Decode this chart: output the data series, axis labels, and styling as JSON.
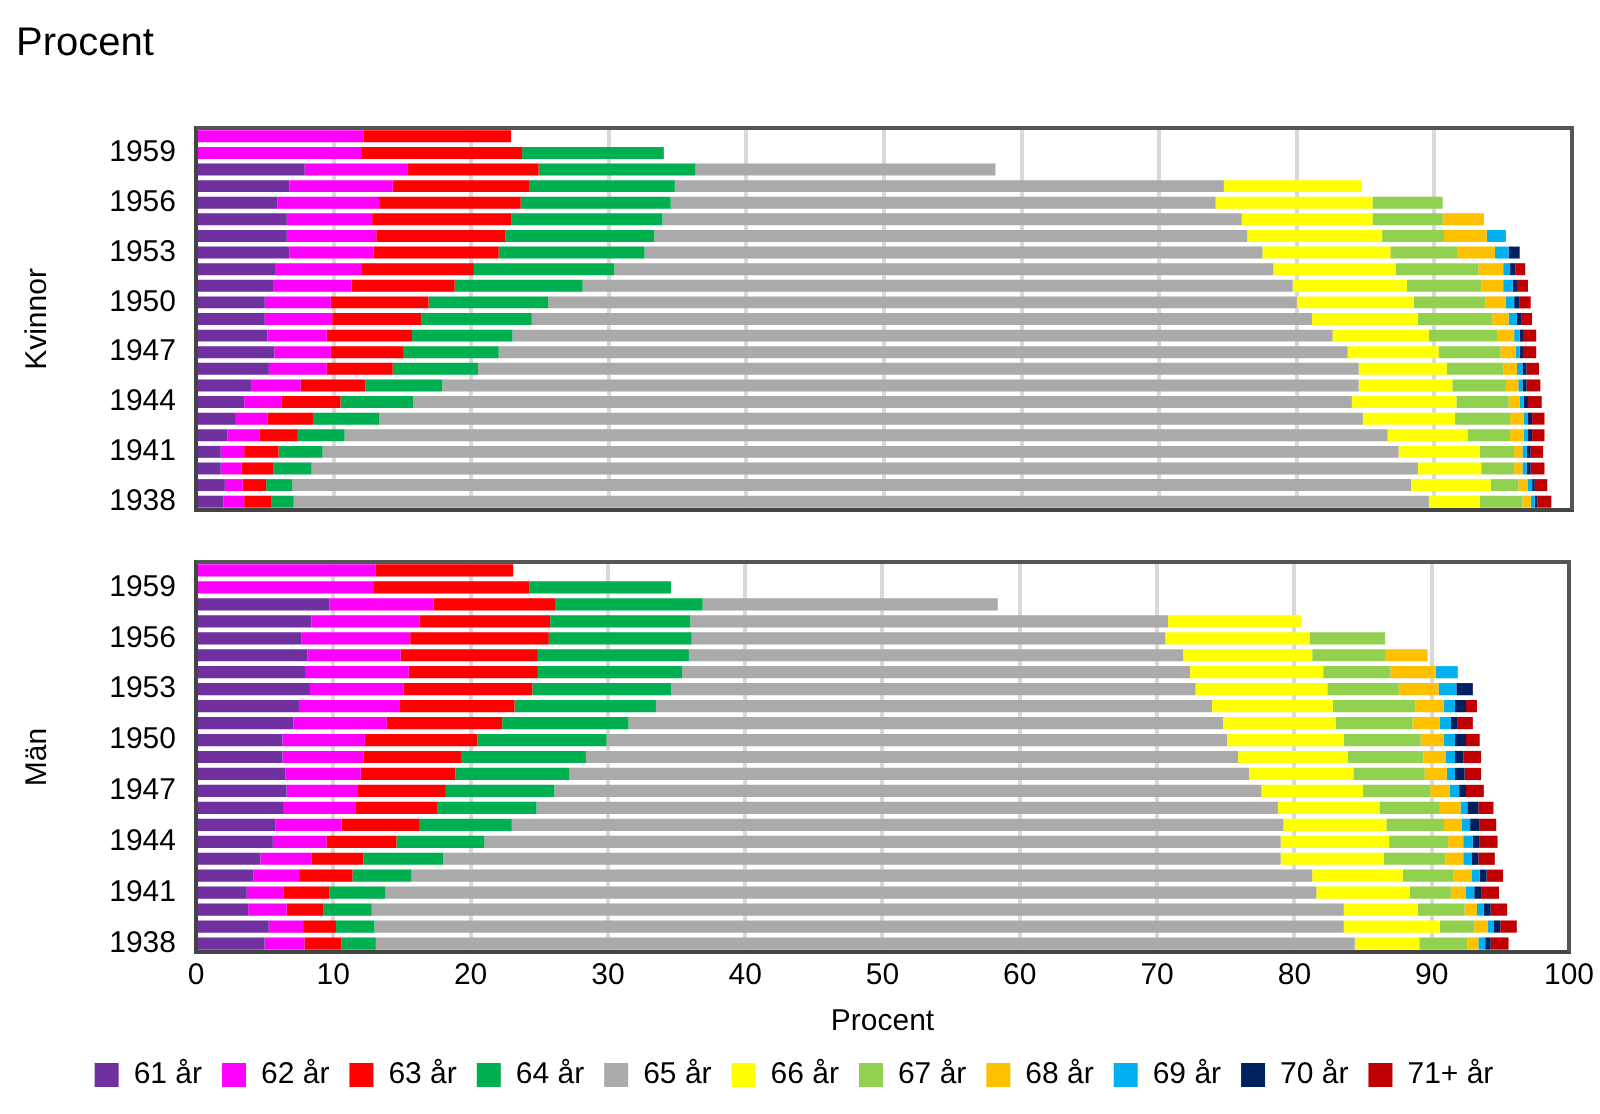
{
  "chart_data": [
    {
      "type": "bar",
      "orientation": "horizontal",
      "stacked": true,
      "title": "Procent",
      "ylabel": "Kvinnor",
      "categories": [
        null,
        "1959",
        null,
        null,
        "1956",
        null,
        null,
        "1953",
        null,
        null,
        "1950",
        null,
        null,
        "1947",
        null,
        null,
        "1944",
        null,
        null,
        "1941",
        null,
        null,
        "1938"
      ],
      "xlim": [
        0,
        100
      ],
      "xticks": [
        0,
        10,
        20,
        30,
        40,
        50,
        60,
        70,
        80,
        90,
        100
      ],
      "grid": "x",
      "legend": false,
      "tick_labels": "y",
      "series": [
        {
          "color": "#7030a0",
          "values": [
            null,
            null,
            7.9,
            6.8,
            5.9,
            6.6,
            6.6,
            6.8,
            5.8,
            5.6,
            5.0,
            5.0,
            5.2,
            5.7,
            5.3,
            4.0,
            3.5,
            2.9,
            2.3,
            1.8,
            1.8,
            2.1,
            2.0
          ]
        },
        {
          "color": "#ff00ff",
          "values": [
            12.2,
            12.0,
            7.5,
            7.5,
            7.4,
            6.2,
            6.5,
            6.1,
            6.2,
            5.7,
            4.8,
            4.9,
            4.3,
            4.1,
            4.2,
            3.6,
            2.7,
            2.3,
            2.3,
            1.7,
            1.5,
            1.3,
            1.5
          ]
        },
        {
          "color": "#ff0000",
          "values": [
            10.7,
            11.7,
            9.5,
            9.9,
            10.3,
            10.1,
            9.4,
            9.1,
            8.2,
            7.5,
            7.1,
            6.5,
            6.2,
            5.3,
            4.8,
            4.7,
            4.3,
            3.3,
            2.8,
            2.5,
            2.3,
            1.7,
            2.0
          ]
        },
        {
          "color": "#00b050",
          "values": [
            null,
            10.3,
            11.4,
            10.6,
            10.9,
            11.0,
            10.8,
            10.6,
            10.2,
            9.3,
            8.7,
            8.0,
            7.3,
            6.9,
            6.2,
            5.6,
            5.3,
            4.8,
            3.4,
            3.2,
            2.8,
            1.9,
            1.6
          ]
        },
        {
          "color": "#aaaaaa",
          "values": [
            null,
            null,
            21.8,
            39.9,
            39.6,
            42.1,
            43.1,
            44.9,
            47.9,
            51.6,
            54.4,
            56.7,
            59.6,
            61.7,
            64.0,
            66.6,
            68.2,
            71.5,
            75.8,
            78.2,
            80.4,
            81.3,
            82.5
          ]
        },
        {
          "color": "#ffff00",
          "values": [
            null,
            null,
            null,
            10.0,
            11.4,
            9.5,
            9.8,
            9.3,
            8.9,
            8.3,
            8.5,
            7.7,
            7.0,
            6.6,
            6.4,
            6.8,
            7.6,
            6.7,
            5.8,
            5.9,
            4.6,
            5.8,
            3.7
          ]
        },
        {
          "color": "#92d050",
          "values": [
            null,
            null,
            null,
            null,
            5.1,
            5.1,
            4.5,
            4.9,
            6.0,
            5.4,
            5.2,
            5.4,
            5.0,
            4.5,
            4.1,
            3.9,
            3.8,
            4.0,
            3.1,
            2.5,
            2.4,
            2.0,
            3.1
          ]
        },
        {
          "color": "#ffc000",
          "values": [
            null,
            null,
            null,
            null,
            null,
            3.0,
            3.1,
            2.7,
            1.8,
            1.6,
            1.5,
            1.2,
            1.2,
            1.1,
            1.0,
            0.9,
            0.8,
            1.0,
            1.0,
            0.6,
            0.6,
            0.7,
            0.6
          ]
        },
        {
          "color": "#00b0f0",
          "values": [
            null,
            null,
            null,
            null,
            null,
            null,
            1.4,
            1.0,
            0.5,
            0.7,
            0.6,
            0.6,
            0.4,
            0.3,
            0.4,
            0.3,
            0.3,
            0.3,
            0.3,
            0.3,
            0.3,
            0.3,
            0.3
          ]
        },
        {
          "color": "#002060",
          "values": [
            null,
            null,
            null,
            null,
            null,
            null,
            null,
            0.8,
            0.4,
            0.3,
            0.4,
            0.3,
            0.3,
            0.3,
            0.3,
            0.3,
            0.3,
            0.3,
            0.3,
            0.3,
            0.3,
            0.2,
            0.2
          ]
        },
        {
          "color": "#c00000",
          "values": [
            null,
            null,
            null,
            null,
            null,
            null,
            null,
            null,
            0.7,
            0.8,
            0.8,
            0.8,
            0.9,
            0.9,
            0.9,
            1.0,
            1.0,
            0.9,
            0.9,
            0.9,
            1.0,
            0.9,
            1.0
          ]
        }
      ]
    },
    {
      "type": "bar",
      "orientation": "horizontal",
      "stacked": true,
      "ylabel": "Män",
      "xlabel": "Procent",
      "categories": [
        null,
        "1959",
        null,
        null,
        "1956",
        null,
        null,
        "1953",
        null,
        null,
        "1950",
        null,
        null,
        "1947",
        null,
        null,
        "1944",
        null,
        null,
        "1941",
        null,
        null,
        "1938"
      ],
      "xlim": [
        0,
        100
      ],
      "xticks": [
        0,
        10,
        20,
        30,
        40,
        50,
        60,
        70,
        80,
        90,
        100
      ],
      "grid": "x",
      "legend": "bottom",
      "series": [
        {
          "name": "61 år",
          "color": "#7030a0",
          "values": [
            null,
            null,
            9.7,
            8.4,
            7.7,
            8.1,
            8.0,
            8.3,
            7.5,
            7.1,
            6.3,
            6.3,
            6.5,
            6.6,
            6.4,
            5.8,
            5.6,
            4.7,
            4.2,
            3.7,
            3.8,
            5.3,
            5.0
          ]
        },
        {
          "name": "62 år",
          "color": "#ff00ff",
          "values": [
            13.1,
            12.9,
            7.6,
            7.9,
            7.9,
            6.8,
            7.5,
            6.8,
            7.3,
            6.8,
            6.0,
            5.9,
            5.5,
            5.2,
            5.2,
            4.8,
            3.9,
            3.7,
            3.3,
            2.7,
            2.8,
            2.5,
            2.9
          ]
        },
        {
          "name": "63 år",
          "color": "#ff0000",
          "values": [
            10.0,
            11.4,
            8.9,
            9.5,
            10.1,
            10.0,
            9.4,
            9.4,
            8.4,
            8.4,
            8.2,
            7.1,
            6.9,
            6.4,
            6.0,
            5.7,
            5.1,
            3.8,
            3.9,
            3.3,
            2.7,
            2.4,
            2.7
          ]
        },
        {
          "name": "64 år",
          "color": "#00b050",
          "values": [
            null,
            10.3,
            10.7,
            10.2,
            10.4,
            11.0,
            10.5,
            10.1,
            10.3,
            9.2,
            9.4,
            9.1,
            8.3,
            7.9,
            7.2,
            6.7,
            6.4,
            5.8,
            4.3,
            4.1,
            3.5,
            2.8,
            2.5
          ]
        },
        {
          "name": "65 år",
          "color": "#aaaaaa",
          "values": [
            null,
            null,
            21.5,
            34.8,
            34.5,
            36.0,
            37.0,
            38.2,
            40.5,
            43.3,
            45.2,
            47.5,
            49.5,
            51.5,
            54.0,
            56.2,
            58.0,
            61.0,
            65.6,
            67.8,
            70.8,
            70.6,
            71.3
          ]
        },
        {
          "name": "66 år",
          "color": "#ffff00",
          "values": [
            null,
            null,
            null,
            9.7,
            10.5,
            9.4,
            9.7,
            9.6,
            8.8,
            8.2,
            8.5,
            8.0,
            7.6,
            7.4,
            7.4,
            7.5,
            7.9,
            7.5,
            6.6,
            6.8,
            5.4,
            7.0,
            4.7
          ]
        },
        {
          "name": "67 år",
          "color": "#92d050",
          "values": [
            null,
            null,
            null,
            null,
            5.5,
            5.3,
            4.9,
            5.2,
            6.0,
            5.6,
            5.6,
            5.5,
            5.2,
            4.9,
            4.4,
            4.2,
            4.3,
            4.5,
            3.7,
            3.0,
            3.4,
            2.5,
            3.5
          ]
        },
        {
          "name": "68 år",
          "color": "#ffc000",
          "values": [
            null,
            null,
            null,
            null,
            null,
            3.1,
            3.3,
            2.9,
            2.1,
            2.0,
            1.7,
            1.6,
            1.6,
            1.4,
            1.5,
            1.3,
            1.1,
            1.3,
            1.3,
            1.1,
            0.9,
            1.0,
            0.8
          ]
        },
        {
          "name": "69 år",
          "color": "#00b0f0",
          "values": [
            null,
            null,
            null,
            null,
            null,
            null,
            1.6,
            1.3,
            0.8,
            0.8,
            0.8,
            0.7,
            0.6,
            0.7,
            0.5,
            0.6,
            0.7,
            0.6,
            0.6,
            0.6,
            0.5,
            0.4,
            0.5
          ]
        },
        {
          "name": "70 år",
          "color": "#002060",
          "values": [
            null,
            null,
            null,
            null,
            null,
            null,
            null,
            1.2,
            0.8,
            0.5,
            0.8,
            0.6,
            0.7,
            0.5,
            0.8,
            0.7,
            0.5,
            0.5,
            0.5,
            0.5,
            0.5,
            0.5,
            0.4
          ]
        },
        {
          "name": "71+ år",
          "color": "#c00000",
          "values": [
            null,
            null,
            null,
            null,
            null,
            null,
            null,
            null,
            0.8,
            1.1,
            1.0,
            1.3,
            1.2,
            1.3,
            1.1,
            1.2,
            1.3,
            1.2,
            1.2,
            1.3,
            1.2,
            1.2,
            1.3
          ]
        }
      ]
    }
  ]
}
